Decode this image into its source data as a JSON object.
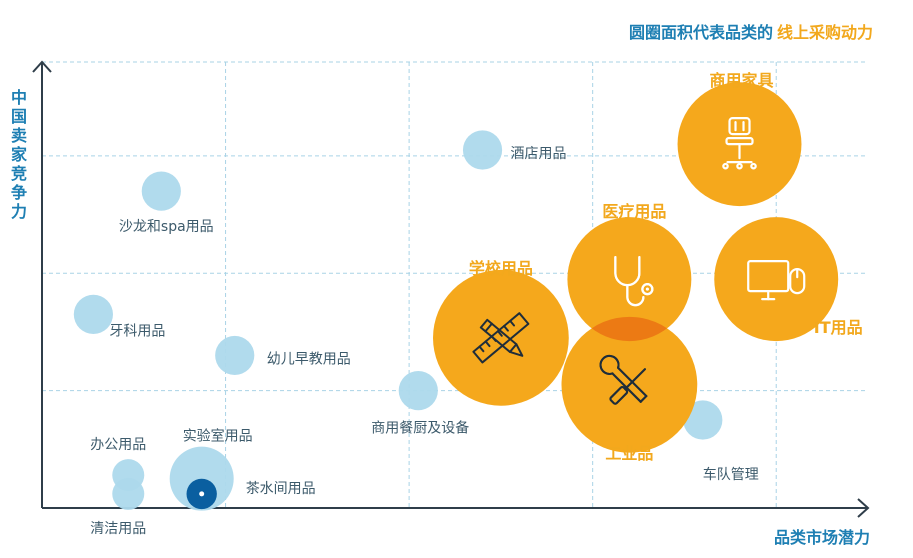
{
  "chart_data": {
    "type": "scatter",
    "title": "圆圈面积代表品类的 线上采购动力",
    "title_parts": {
      "main": "圆圈面积代表品类的",
      "highlight": "线上采购动力"
    },
    "xlabel": "品类市场潜力",
    "ylabel": "中国卖家竞争力",
    "xlim": [
      0,
      4.5
    ],
    "ylim": [
      0,
      3.8
    ],
    "grid": true,
    "colors": {
      "minor": "#add9ec",
      "major": "#f5a81c",
      "axis": "#2f3e4a",
      "grid": "#a9d3e6",
      "title": "#1e7fb3",
      "accent": "#0a5fa0",
      "label": "#3c5a6b",
      "highlight_label": "#f2a81d"
    },
    "points": [
      {
        "name": "酒店用品",
        "x": 2.4,
        "y": 3.05,
        "size": 1.5,
        "highlight": false
      },
      {
        "name": "沙龙和spa用品",
        "x": 0.65,
        "y": 2.7,
        "size": 1.5,
        "highlight": false
      },
      {
        "name": "牙科用品",
        "x": 0.28,
        "y": 1.65,
        "size": 1.5,
        "highlight": false
      },
      {
        "name": "幼儿早教用品",
        "x": 1.05,
        "y": 1.3,
        "size": 1.5,
        "highlight": false
      },
      {
        "name": "商用餐厨及设备",
        "x": 2.05,
        "y": 1.0,
        "size": 1.5,
        "highlight": false
      },
      {
        "name": "车队管理",
        "x": 3.6,
        "y": 0.75,
        "size": 1.5,
        "highlight": false
      },
      {
        "name": "办公用品",
        "x": 0.47,
        "y": 0.28,
        "size": 1.0,
        "highlight": false
      },
      {
        "name": "清洁用品",
        "x": 0.47,
        "y": 0.12,
        "size": 1.0,
        "highlight": false
      },
      {
        "name": "实验室用品",
        "x": 0.87,
        "y": 0.25,
        "size": 4.0,
        "highlight": false
      },
      {
        "name": "茶水间用品",
        "x": 0.87,
        "y": 0.12,
        "size": 0.9,
        "highlight": false
      },
      {
        "name": "商用家具",
        "x": 3.8,
        "y": 3.1,
        "size": 15,
        "highlight": true
      },
      {
        "name": "医疗用品",
        "x": 3.2,
        "y": 1.95,
        "size": 15,
        "highlight": true
      },
      {
        "name": "IT用品",
        "x": 4.0,
        "y": 1.95,
        "size": 15,
        "highlight": true
      },
      {
        "name": "学校用品",
        "x": 2.5,
        "y": 1.45,
        "size": 18,
        "highlight": true
      },
      {
        "name": "工业品",
        "x": 3.2,
        "y": 1.05,
        "size": 18,
        "highlight": true
      }
    ]
  }
}
